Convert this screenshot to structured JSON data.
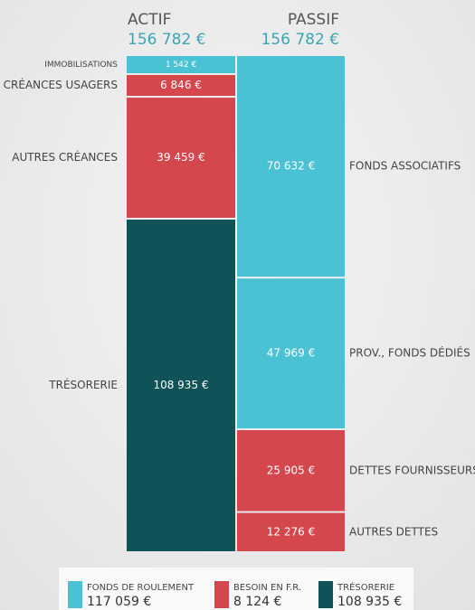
{
  "chart_data": {
    "type": "stacked_column",
    "categories": [
      "ACTIF",
      "PASSIF"
    ],
    "total_labels": [
      "156 782 €",
      "156 782 €"
    ],
    "series": [
      {
        "name": "IMMOBILISATIONS",
        "color": "#4bc1d4",
        "values": [
          1542,
          null
        ],
        "value_labels": [
          "1 542 €",
          null
        ]
      },
      {
        "name": "CRÉANCES USAGERS",
        "color": "#d4474c",
        "values": [
          6846,
          null
        ],
        "value_labels": [
          "6 846 €",
          null
        ]
      },
      {
        "name": "AUTRES CRÉANCES",
        "color": "#d4474c",
        "values": [
          39459,
          null
        ],
        "value_labels": [
          "39 459 €",
          null
        ]
      },
      {
        "name": "TRÉSORERIE",
        "color": "#0f5359",
        "values": [
          108935,
          null
        ],
        "value_labels": [
          "108 935 €",
          null
        ]
      },
      {
        "name": "FONDS ASSOCIATIFS",
        "color": "#4bc1d4",
        "values": [
          null,
          70632
        ],
        "value_labels": [
          null,
          "70 632 €"
        ]
      },
      {
        "name": "PROV., FONDS DÉDIÉS",
        "color": "#4bc1d4",
        "values": [
          null,
          47969
        ],
        "value_labels": [
          null,
          "47 969 €"
        ]
      },
      {
        "name": "DETTES FOURNISSEURS",
        "color": "#d4474c",
        "values": [
          null,
          25905
        ],
        "value_labels": [
          null,
          "25 905 €"
        ]
      },
      {
        "name": "AUTRES DETTES",
        "color": "#d4474c",
        "values": [
          null,
          12276
        ],
        "value_labels": [
          null,
          "12 276 €"
        ]
      }
    ],
    "legend_items": [
      {
        "name": "FONDS DE ROULEMENT",
        "color": "#4bc1d4",
        "value": 117059,
        "value_label": "117 059 €"
      },
      {
        "name": "BESOIN EN F.R.",
        "color": "#d4474c",
        "value": 8124,
        "value_label": "8 124 €"
      },
      {
        "name": "TRÉSORERIE",
        "color": "#0f5359",
        "value": 108935,
        "value_label": "108 935 €"
      }
    ]
  }
}
